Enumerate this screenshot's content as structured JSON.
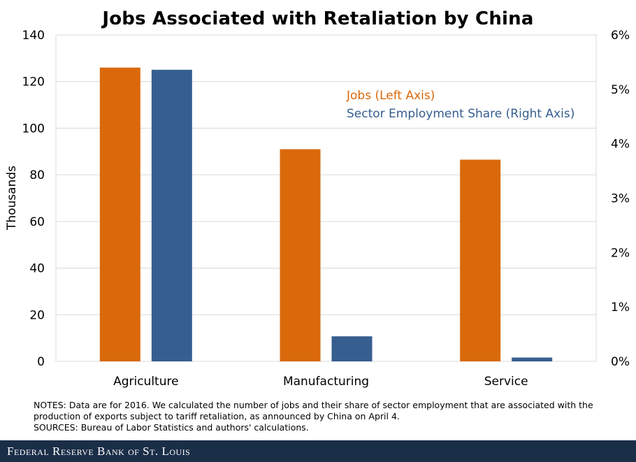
{
  "chart_data": {
    "type": "bar",
    "title": "Jobs Associated with Retaliation by China",
    "categories": [
      "Agriculture",
      "Manufacturing",
      "Service"
    ],
    "series": [
      {
        "name": "Jobs (Left Axis)",
        "axis": "left",
        "color": "#d9690b",
        "values": [
          126,
          91,
          86.5
        ]
      },
      {
        "name": "Sector Employment Share (Right Axis)",
        "axis": "right",
        "color": "#365e8f",
        "values": [
          5.36,
          0.46,
          0.07
        ]
      }
    ],
    "ylabel": "Thousands",
    "y_left": {
      "lim": [
        0,
        140
      ],
      "ticks": [
        "0",
        "20",
        "40",
        "60",
        "80",
        "100",
        "120",
        "140"
      ]
    },
    "y_right": {
      "lim": [
        0,
        6
      ],
      "ticks": [
        "0%",
        "1%",
        "2%",
        "3%",
        "4%",
        "5%",
        "6%"
      ]
    },
    "grid": true,
    "legend_position": "top-right"
  },
  "notes": {
    "line1": "NOTES: Data are for 2016. We calculated the number of jobs and their share of sector employment that are associated with the",
    "line2": "production of exports subject to tariff retaliation, as announced by China on April 4.",
    "line3": "SOURCES: Bureau of Labor Statistics and authors' calculations."
  },
  "footer": {
    "text": "Federal Reserve Bank of St. Louis"
  }
}
